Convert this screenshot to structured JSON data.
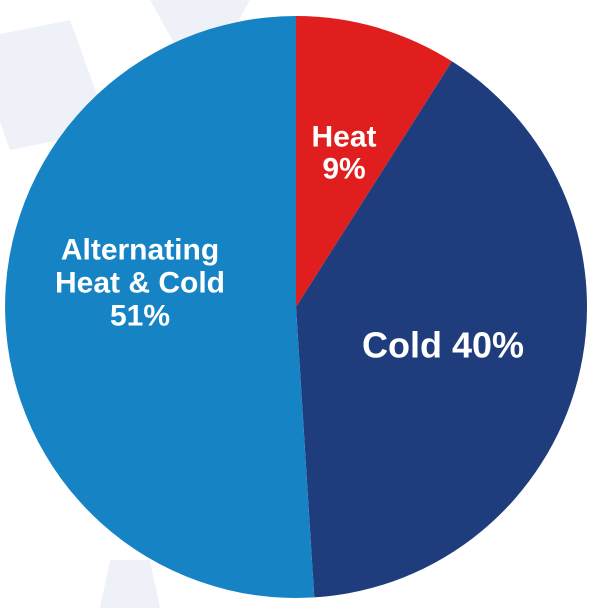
{
  "chart_data": {
    "type": "pie",
    "title": "",
    "start_angle_deg": 0,
    "direction": "clockwise",
    "slices": [
      {
        "name": "Heat",
        "value": 9,
        "color": "#e01e1e",
        "label_lines": [
          "Heat",
          "9%"
        ]
      },
      {
        "name": "Cold",
        "value": 40,
        "color": "#1f3d7c",
        "label_lines": [
          "Cold 40%"
        ]
      },
      {
        "name": "Alternating Heat & Cold",
        "value": 51,
        "color": "#1684c4",
        "label_lines": [
          "Alternating",
          "Heat & Cold",
          "51%"
        ]
      }
    ]
  }
}
